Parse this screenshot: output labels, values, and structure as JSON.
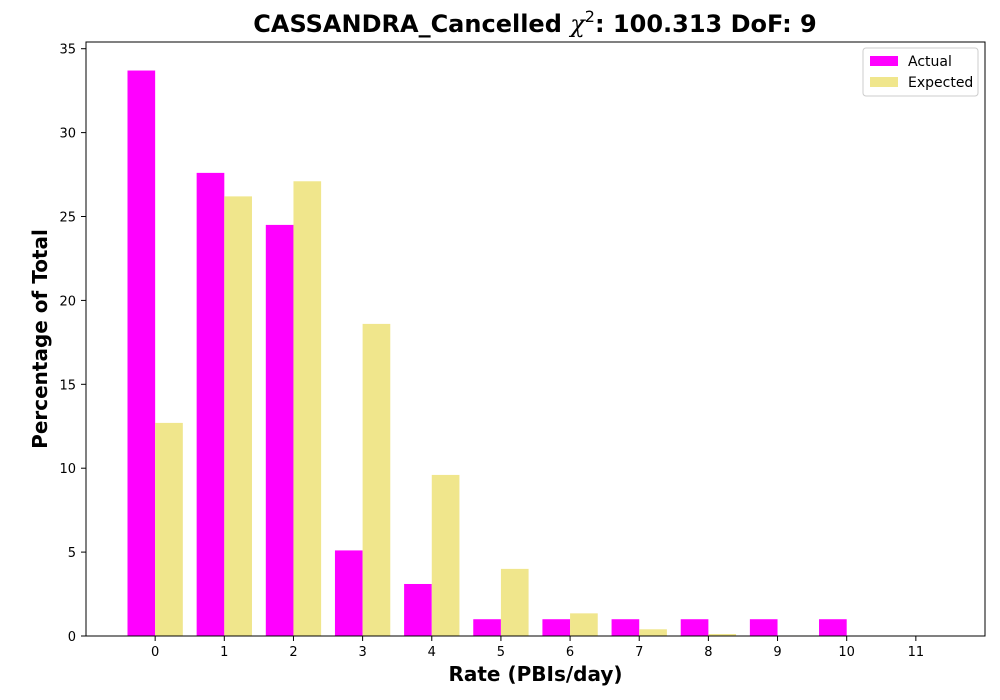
{
  "chart_data": {
    "type": "bar",
    "title_prefix": "CASSANDRA_Cancelled ",
    "title_symbol": "χ",
    "title_superscript": "2",
    "title_suffix": ": 100.313 DoF: 9",
    "xlabel": "Rate (PBIs/day)",
    "ylabel": "Percentage of Total",
    "categories": [
      "0",
      "1",
      "2",
      "3",
      "4",
      "5",
      "6",
      "7",
      "8",
      "9",
      "10",
      "11"
    ],
    "x": [
      0,
      1,
      2,
      3,
      4,
      5,
      6,
      7,
      8,
      9,
      10,
      11
    ],
    "xlim": [
      -1,
      12
    ],
    "ylim": [
      0,
      35.4
    ],
    "yticks": [
      0,
      5,
      10,
      15,
      20,
      25,
      30,
      35
    ],
    "legend_position": "top-right",
    "grid": false,
    "series": [
      {
        "name": "Actual",
        "color": "#ff00ff",
        "values": [
          33.7,
          27.6,
          24.5,
          5.1,
          3.1,
          1.0,
          1.0,
          1.0,
          1.0,
          1.0,
          1.0,
          0
        ]
      },
      {
        "name": "Expected",
        "color": "#f0e68c",
        "values": [
          12.7,
          26.2,
          27.1,
          18.6,
          9.6,
          4.0,
          1.35,
          0.4,
          0.12,
          0.03,
          0.01,
          0.0
        ]
      }
    ]
  }
}
